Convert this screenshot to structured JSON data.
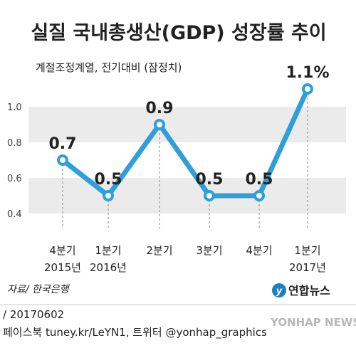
{
  "chart_data": {
    "type": "line",
    "title": "실질 국내총생산(GDP) 성장률 추이",
    "subtitle": "계절조정계열, 전기대비 (잠정치)",
    "categories": [
      [
        "4분기",
        "2015년"
      ],
      [
        "1분기",
        "2016년"
      ],
      [
        "2분기",
        ""
      ],
      [
        "3분기",
        ""
      ],
      [
        "4분기",
        ""
      ],
      [
        "1분기",
        "2017년"
      ]
    ],
    "series": [
      {
        "name": "",
        "values": [
          0.7,
          0.5,
          0.9,
          0.5,
          0.5,
          1.1
        ],
        "labels": [
          "0.7",
          "0.5",
          "0.9",
          "0.5",
          "0.5",
          "1.1%"
        ]
      }
    ],
    "yticks": [
      "1.0",
      "0.8",
      "0.6",
      "0.4"
    ],
    "ylim": [
      0.4,
      1.0
    ],
    "legend": "none",
    "grid": "alternating bands",
    "colors": {
      "line": "#2e9fd8",
      "band": "#ebebeb"
    }
  },
  "source": "자료/ 한국은행",
  "brand": "연합뉴스",
  "footer": {
    "date_line": "/ 20170602",
    "social_line": "페이스북 tuney.kr/LeYN1, 트위터 @yonhap_graphics",
    "watermark": "YONHAP NEWS"
  }
}
